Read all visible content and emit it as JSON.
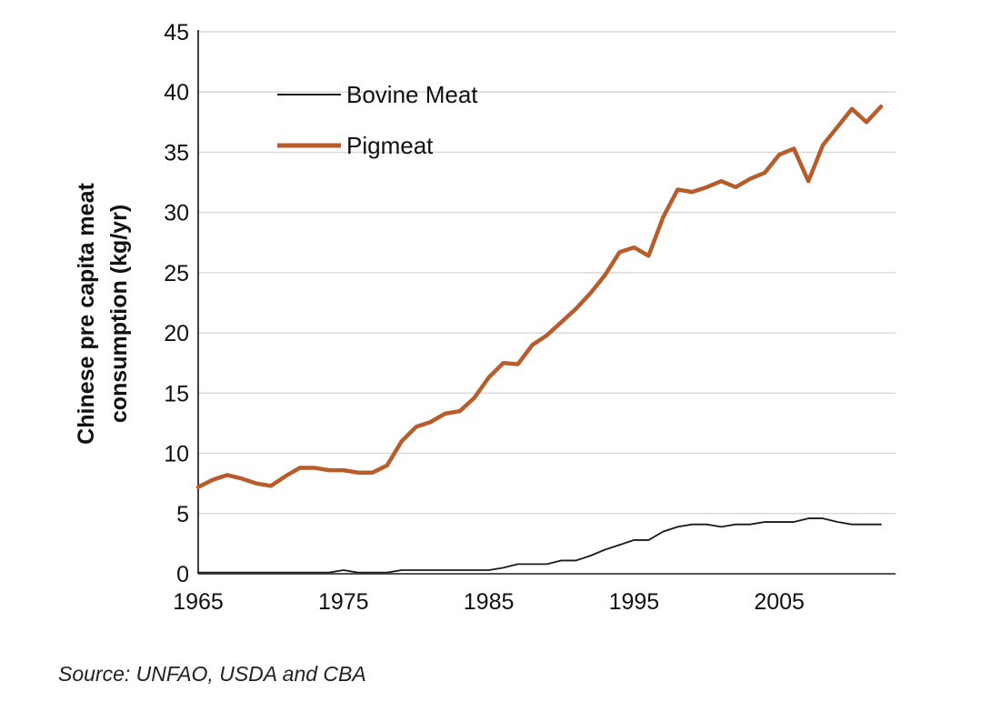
{
  "chart_data": {
    "type": "line",
    "title": "",
    "xlabel": "",
    "ylabel_lines": [
      "Chinese pre capita meat",
      "consumption (kg/yr)"
    ],
    "x": [
      1965,
      1966,
      1967,
      1968,
      1969,
      1970,
      1971,
      1972,
      1973,
      1974,
      1975,
      1976,
      1977,
      1978,
      1979,
      1980,
      1981,
      1982,
      1983,
      1984,
      1985,
      1986,
      1987,
      1988,
      1989,
      1990,
      1991,
      1992,
      1993,
      1994,
      1995,
      1996,
      1997,
      1998,
      1999,
      2000,
      2001,
      2002,
      2003,
      2004,
      2005,
      2006,
      2007,
      2008,
      2009,
      2010,
      2011,
      2012
    ],
    "xlim": [
      1965,
      2013
    ],
    "ylim": [
      0,
      45
    ],
    "x_ticks": [
      1965,
      1975,
      1985,
      1995,
      2005
    ],
    "y_ticks": [
      0,
      5,
      10,
      15,
      20,
      25,
      30,
      35,
      40,
      45
    ],
    "grid": "horizontal",
    "legend_position": "top-left",
    "series": [
      {
        "name": "Bovine Meat",
        "color": "#1a1a1a",
        "values": [
          0.1,
          0.1,
          0.1,
          0.1,
          0.1,
          0.1,
          0.1,
          0.1,
          0.1,
          0.1,
          0.3,
          0.1,
          0.1,
          0.1,
          0.3,
          0.3,
          0.3,
          0.3,
          0.3,
          0.3,
          0.3,
          0.5,
          0.8,
          0.8,
          0.8,
          1.1,
          1.1,
          1.5,
          2.0,
          2.4,
          2.8,
          2.8,
          3.5,
          3.9,
          4.1,
          4.1,
          3.9,
          4.1,
          4.1,
          4.3,
          4.3,
          4.3,
          4.6,
          4.6,
          4.3,
          4.1,
          4.1,
          4.1
        ]
      },
      {
        "name": "Pigmeat",
        "color": "#b85c2c",
        "values": [
          7.2,
          7.8,
          8.2,
          7.9,
          7.5,
          7.3,
          8.1,
          8.8,
          8.8,
          8.6,
          8.6,
          8.4,
          8.4,
          9.0,
          11.0,
          12.2,
          12.6,
          13.3,
          13.5,
          14.6,
          16.3,
          17.5,
          17.4,
          19.0,
          19.8,
          20.9,
          22.0,
          23.3,
          24.8,
          26.7,
          27.1,
          26.4,
          29.6,
          31.9,
          31.7,
          32.1,
          32.6,
          32.1,
          32.8,
          33.3,
          34.8,
          35.3,
          32.6,
          35.6,
          37.1,
          38.6,
          37.5,
          38.8
        ]
      }
    ],
    "source_note": "Source: UNFAO, USDA and CBA"
  }
}
